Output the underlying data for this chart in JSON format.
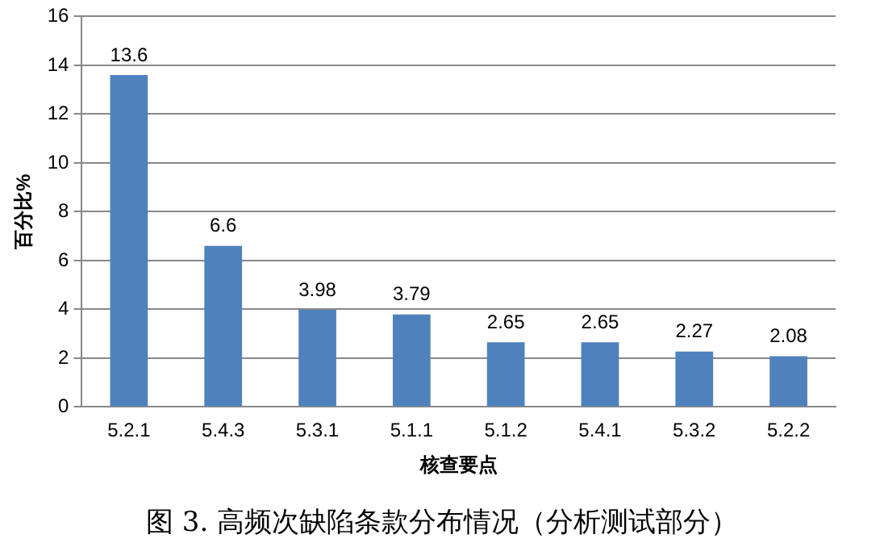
{
  "chart_data": {
    "type": "bar",
    "xlabel": "核查要点",
    "ylabel": "百分比%",
    "categories": [
      "5.2.1",
      "5.4.3",
      "5.3.1",
      "5.1.1",
      "5.1.2",
      "5.4.1",
      "5.3.2",
      "5.2.2"
    ],
    "values": [
      13.6,
      6.6,
      3.98,
      3.79,
      2.65,
      2.65,
      2.27,
      2.08
    ],
    "color": "#4f81bd",
    "ylim": [
      0,
      16
    ],
    "yticks": [
      0,
      2,
      4,
      6,
      8,
      10,
      12,
      14,
      16
    ],
    "grid": "y",
    "legend": false,
    "data_labels": true,
    "annotations": [
      "图 3.  高频次缺陷条款分布情况（分析测试部分）"
    ]
  }
}
